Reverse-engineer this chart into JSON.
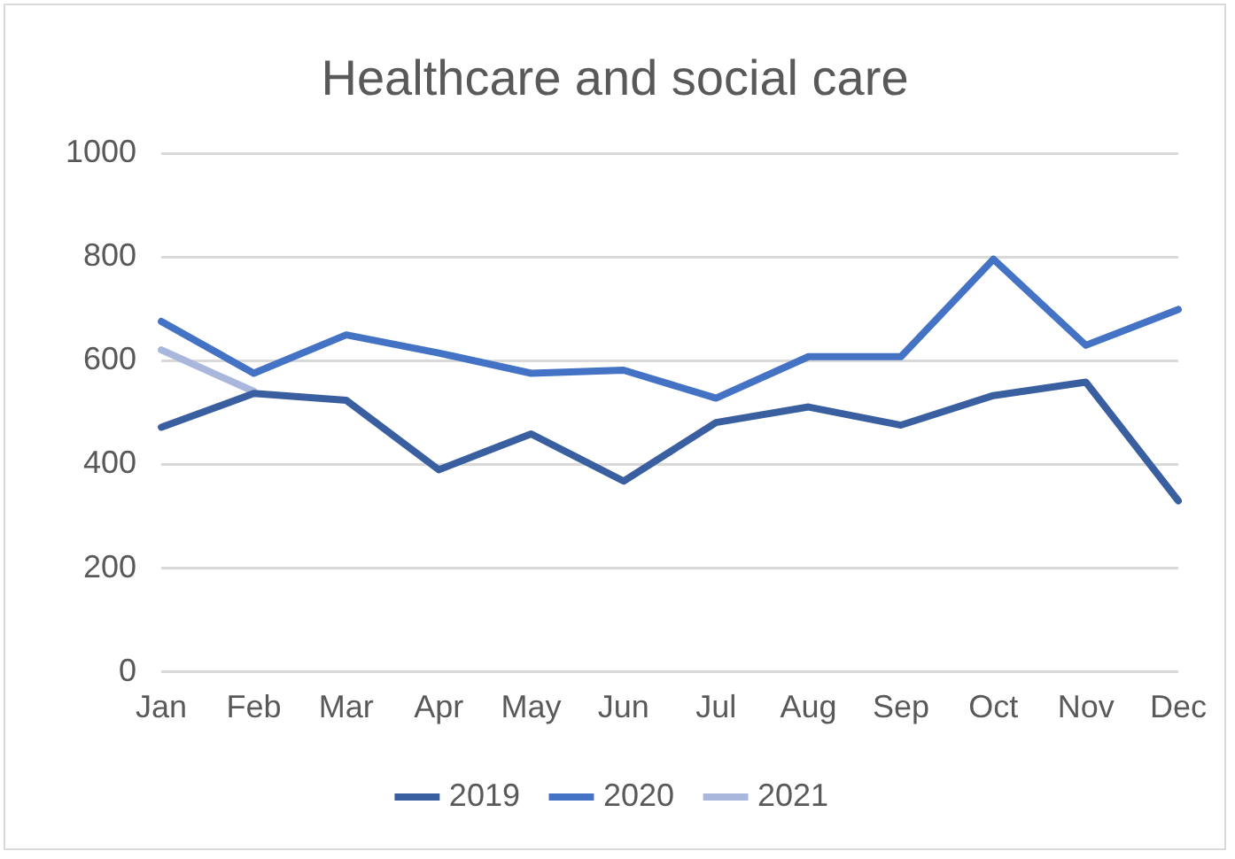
{
  "chart_data": {
    "type": "line",
    "title": "Healthcare and social care",
    "categories": [
      "Jan",
      "Feb",
      "Mar",
      "Apr",
      "May",
      "Jun",
      "Jul",
      "Aug",
      "Sep",
      "Oct",
      "Nov",
      "Dec"
    ],
    "series": [
      {
        "name": "2019",
        "color": "#3a5fa0",
        "values": [
          472,
          537,
          524,
          390,
          459,
          368,
          481,
          511,
          476,
          533,
          559,
          330
        ]
      },
      {
        "name": "2020",
        "color": "#4472c4",
        "values": [
          676,
          576,
          650,
          615,
          576,
          582,
          528,
          608,
          608,
          796,
          630,
          699
        ]
      },
      {
        "name": "2021",
        "color": "#a9b7dc",
        "values": [
          621,
          541,
          null,
          null,
          null,
          null,
          null,
          null,
          null,
          null,
          null,
          null
        ]
      }
    ],
    "ylim": [
      0,
      1000
    ],
    "yticks": [
      0,
      200,
      400,
      600,
      800,
      1000
    ],
    "grid": "y",
    "legend": "bottom",
    "marker": "none",
    "line_style": "solid"
  }
}
